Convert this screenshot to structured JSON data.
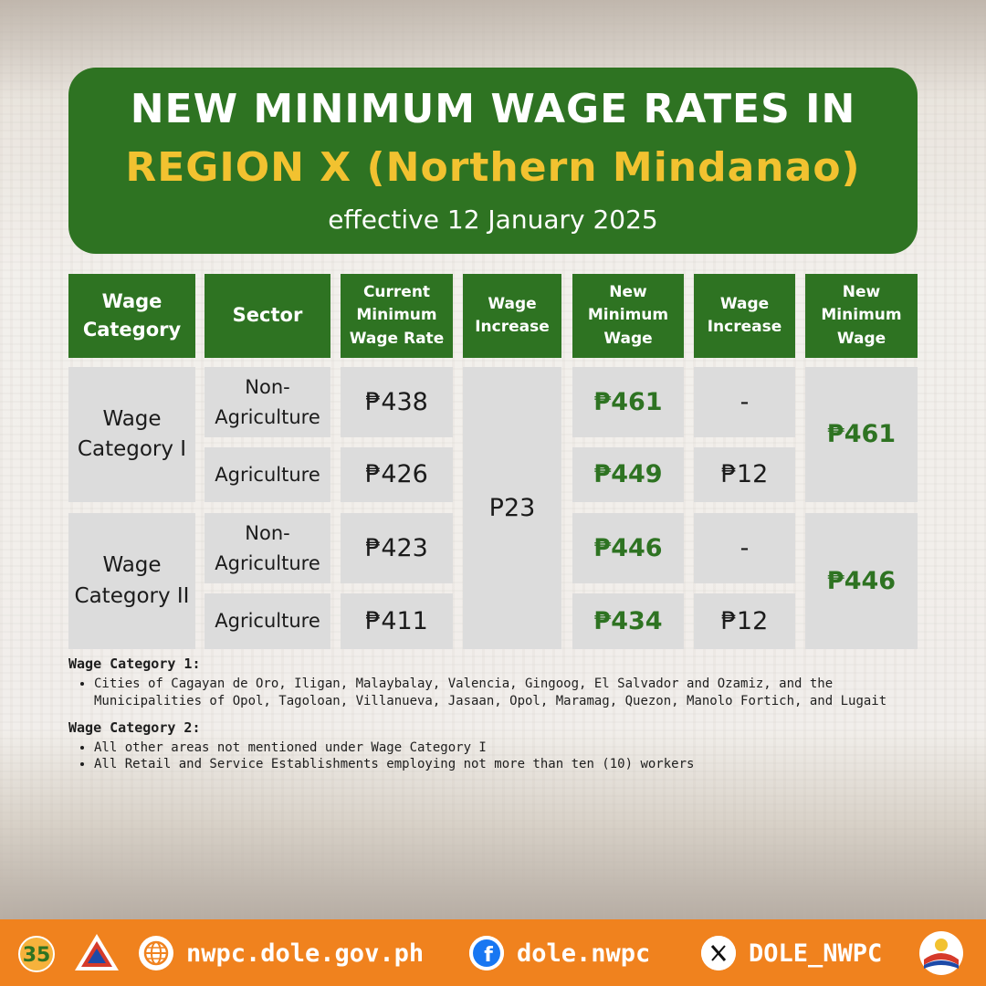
{
  "header": {
    "line1": "NEW MINIMUM WAGE RATES IN",
    "line2": "REGION X (Northern Mindanao)",
    "line3": "effective 12 January 2025"
  },
  "table": {
    "headers": [
      "Wage Category",
      "Sector",
      "Current Minimum Wage Rate",
      "Wage Increase",
      "New Minimum Wage",
      "Wage Increase",
      "New Minimum Wage"
    ],
    "rows": [
      {
        "category": "Wage Category I",
        "sector": "Non-Agriculture",
        "current": "₱438",
        "new": "₱461",
        "increase2": "-"
      },
      {
        "category": "Wage Category I",
        "sector": "Agriculture",
        "current": "₱426",
        "new": "₱449",
        "increase2": "₱12"
      },
      {
        "category": "Wage Category II",
        "sector": "Non-Agriculture",
        "current": "₱423",
        "new": "₱446",
        "increase2": "-"
      },
      {
        "category": "Wage Category II",
        "sector": "Agriculture",
        "current": "₱411",
        "new": "₱434",
        "increase2": "₱12"
      }
    ],
    "increase_all": "P23",
    "final_cat1": "₱461",
    "final_cat2": "₱446"
  },
  "notes": {
    "cat1_title": "Wage Category 1:",
    "cat1_items": [
      "Cities of Cagayan de Oro, Iligan, Malaybalay, Valencia, Gingoog, El Salvador and Ozamiz, and the Municipalities of Opol, Tagoloan, Villanueva, Jasaan, Opol, Maramag, Quezon, Manolo Fortich, and Lugait"
    ],
    "cat2_title": "Wage Category 2:",
    "cat2_items": [
      "All other areas not mentioned under Wage Category I",
      "All Retail and Service Establishments employing not more than ten (10) workers"
    ]
  },
  "footer": {
    "website": "nwpc.dole.gov.ph",
    "facebook": "dole.nwpc",
    "x": "DOLE_NWPC",
    "website_icon": "globe-icon",
    "facebook_icon": "facebook-icon",
    "x_icon": "x-icon",
    "logo_left_text": "35"
  },
  "colors": {
    "green": "#2e7322",
    "yellow": "#f2c230",
    "orange": "#f0821e",
    "cell_gray": "#dcdcdc"
  }
}
